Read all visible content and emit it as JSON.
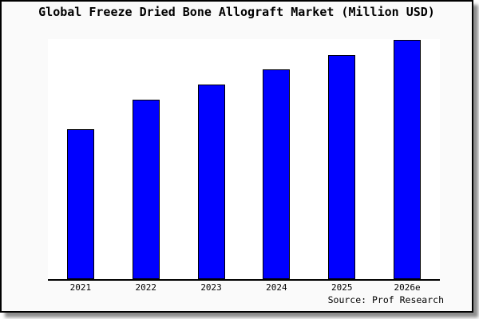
{
  "title": "Global Freeze Dried Bone Allograft Market (Million USD)",
  "source": "Source: Prof Research",
  "colors": {
    "bar_fill": "#0000ff",
    "bar_border": "#000000",
    "panel_bg": "#fafafa",
    "plot_bg": "#ffffff",
    "axis": "#000000",
    "text": "#000000"
  },
  "chart_data": {
    "type": "bar",
    "title": "Global Freeze Dried Bone Allograft Market (Million USD)",
    "categories": [
      "2021",
      "2022",
      "2023",
      "2024",
      "2025",
      "2026e"
    ],
    "values": [
      62.7,
      75.0,
      81.3,
      87.7,
      93.7,
      100.0
    ],
    "value_scale": "relative, % of tallest bar (y-axis is unlabeled in figure)",
    "xlabel": "",
    "ylabel": "",
    "ylim": [
      0,
      100
    ],
    "grid": false,
    "legend": false,
    "source_note": "Source: Prof Research"
  }
}
